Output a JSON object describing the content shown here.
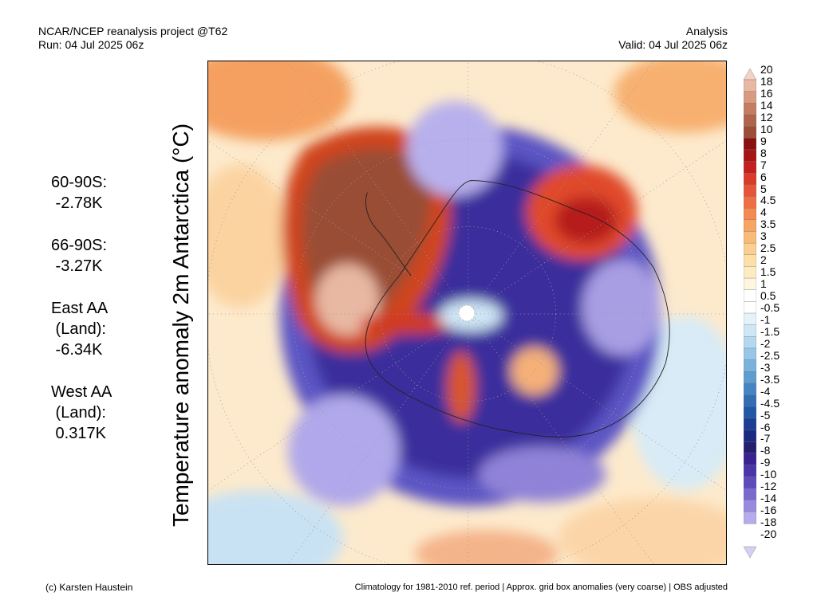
{
  "header": {
    "line1_left": "NCAR/NCEP reanalysis project @T62",
    "line2_left": "Run: 04 Jul 2025 06z",
    "line1_right": "Analysis",
    "line2_right": "Valid: 04 Jul 2025 06z"
  },
  "title_vertical": "Temperature anomaly 2m Antarctica (°C)",
  "stats": [
    {
      "lines": [
        "60-90S:",
        " -2.78K"
      ]
    },
    {
      "lines": [
        "66-90S:",
        " -3.27K"
      ]
    },
    {
      "lines": [
        "East AA",
        " (Land):",
        " -6.34K"
      ]
    },
    {
      "lines": [
        "West AA",
        " (Land):",
        " 0.317K"
      ]
    }
  ],
  "colorbar": {
    "labels": [
      "20",
      "18",
      "16",
      "14",
      "12",
      "10",
      "9",
      "8",
      "7",
      "6",
      "5",
      "4.5",
      "4",
      "3.5",
      "3",
      "2.5",
      "2",
      "1.5",
      "1",
      "0.5",
      "-0.5",
      "-1",
      "-1.5",
      "-2",
      "-2.5",
      "-3",
      "-3.5",
      "-4",
      "-4.5",
      "-5",
      "-6",
      "-7",
      "-8",
      "-9",
      "-10",
      "-12",
      "-14",
      "-16",
      "-18",
      "-20"
    ],
    "colors": [
      "#f3d2c4",
      "#e8b8a3",
      "#d89a80",
      "#c47d62",
      "#b0644b",
      "#9b4f38",
      "#8a1010",
      "#a81414",
      "#c41e1e",
      "#d93a2a",
      "#e6553a",
      "#ee6f44",
      "#f48a50",
      "#f8a463",
      "#fabb78",
      "#fccf90",
      "#fde0a8",
      "#fdecc2",
      "#fef6e0",
      "#ffffff",
      "#ffffff",
      "#e6f2fa",
      "#cfe6f5",
      "#b4d8ee",
      "#97c6e6",
      "#7bb2dc",
      "#5f9ccf",
      "#4785c2",
      "#336db4",
      "#2257a5",
      "#1c3f94",
      "#1a2a80",
      "#24206e",
      "#3a2290",
      "#4b35a8",
      "#5c4cbc",
      "#7a6ad0",
      "#978ae0",
      "#b5acec",
      "#d4cff5"
    ]
  },
  "footer": {
    "credit": "(c) Karsten Haustein",
    "note": "Climatology for 1981-2010 ref. period | Approx. grid box anomalies (very coarse) | OBS adjusted"
  }
}
